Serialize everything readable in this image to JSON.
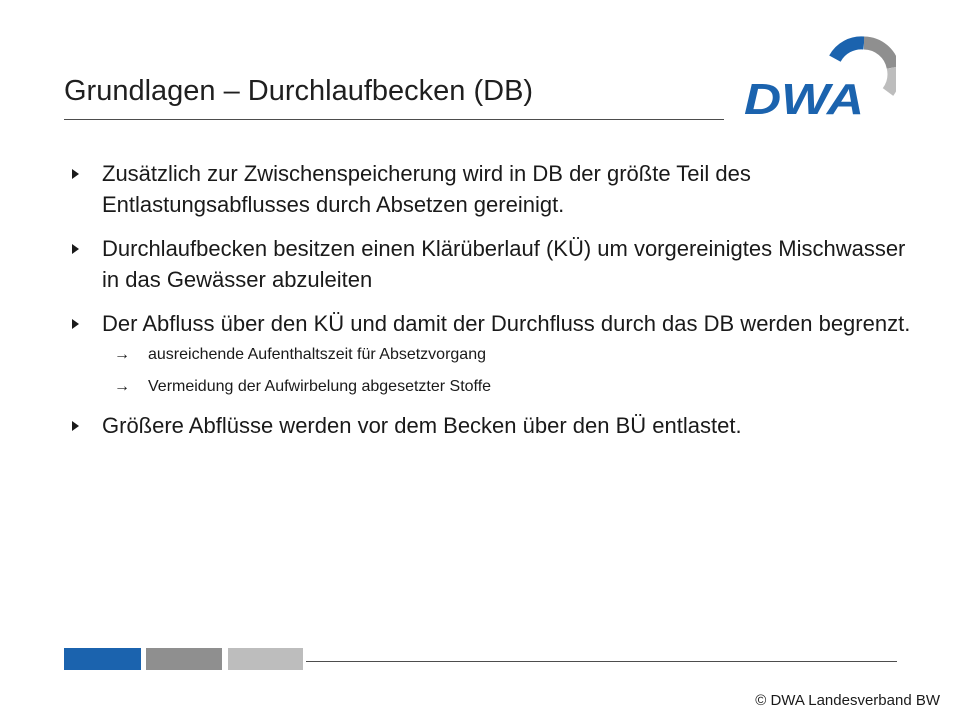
{
  "slide": {
    "title": "Grundlagen – Durchlaufbecken (DB)"
  },
  "logo": {
    "text": "DWA",
    "colors": {
      "text": "#1b63ae",
      "arc_blue": "#1b63ae",
      "arc_gray": "#8f8f8f",
      "arc_light": "#bdbdbd"
    }
  },
  "bullets": [
    {
      "text": "Zusätzlich zur Zwischenspeicherung wird in DB der größte Teil des Entlastungsabflusses  durch Absetzen gereinigt."
    },
    {
      "text": "Durchlaufbecken besitzen einen Klärüberlauf (KÜ) um vorgereinigtes Mischwasser in das Gewässer abzuleiten"
    },
    {
      "text": "Der Abfluss über den KÜ und damit der Durchfluss durch das DB werden begrenzt.",
      "subs": [
        {
          "arrow": "→",
          "text": "ausreichende Aufenthaltszeit für Absetzvorgang"
        },
        {
          "arrow": "→",
          "text": "Vermeidung der Aufwirbelung abgesetzter Stoffe"
        }
      ]
    },
    {
      "text": "Größere Abflüsse werden vor dem Becken über den BÜ entlastet."
    }
  ],
  "footer": {
    "copyright": "© DWA Landesverband BW",
    "bar_colors": [
      "#1b63ae",
      "#8f8f8f",
      "#bdbdbd"
    ]
  }
}
